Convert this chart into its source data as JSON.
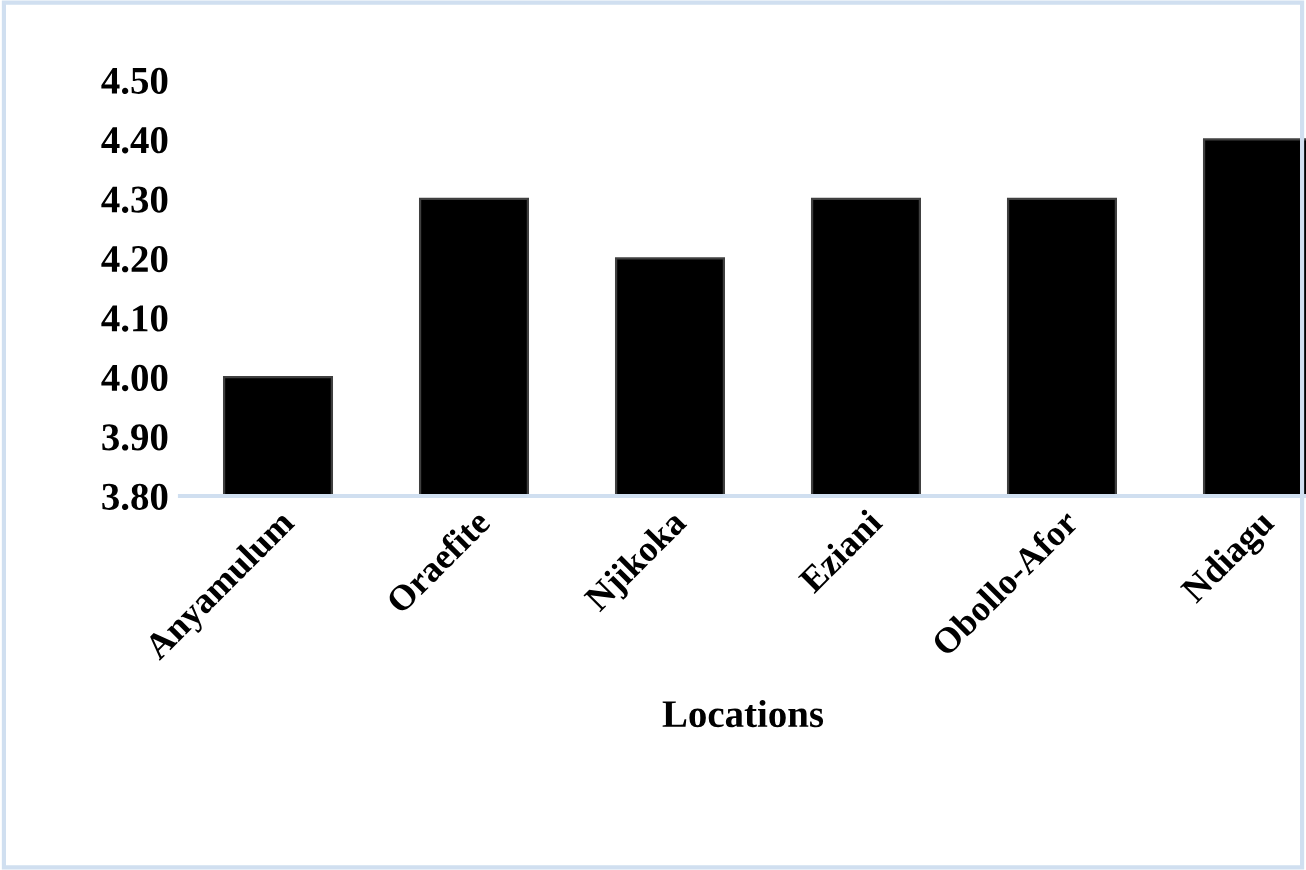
{
  "chart_data": {
    "type": "bar",
    "xlabel": "Locations",
    "categories": [
      "Anyamulum",
      "Oraefite",
      "Njikoka",
      "Eziani",
      "Obollo-Afor",
      "Ndiagu"
    ],
    "values": [
      4.0,
      4.3,
      4.2,
      4.3,
      4.3,
      4.4
    ],
    "color": "#000000",
    "ylim": [
      3.8,
      4.5
    ],
    "yticks": [
      {
        "value": 3.8,
        "label": "3.80"
      },
      {
        "value": 3.9,
        "label": "3.90"
      },
      {
        "value": 4.0,
        "label": "4.00"
      },
      {
        "value": 4.1,
        "label": "4.10"
      },
      {
        "value": 4.2,
        "label": "4.20"
      },
      {
        "value": 4.3,
        "label": "4.30"
      },
      {
        "value": 4.4,
        "label": "4.40"
      },
      {
        "value": 4.5,
        "label": "4.50"
      }
    ],
    "grid": false,
    "legend": false
  }
}
